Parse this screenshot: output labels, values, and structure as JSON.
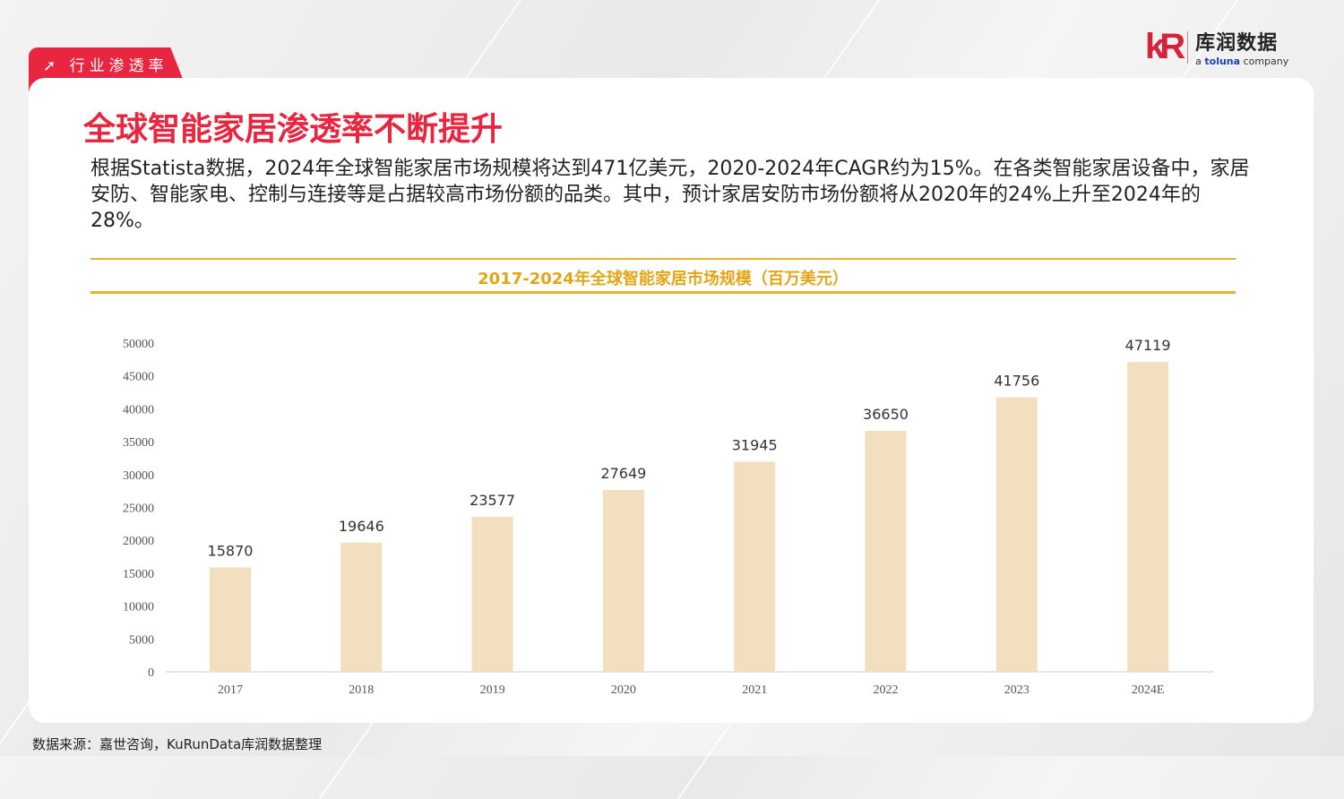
{
  "section_tab": "行业渗透率",
  "logo": {
    "cn": "库润数据",
    "en_prefix": "a ",
    "en_brand": "toluna",
    "en_suffix": " company"
  },
  "title": "全球智能家居渗透率不断提升",
  "description": "根据Statista数据，2024年全球智能家居市场规模将达到471亿美元，2020-2024年CAGR约为15%。在各类智能家居设备中，家居安防、智能家电、控制与连接等是占据较高市场份额的品类。其中，预计家居安防市场份额将从2020年的24%上升至2024年的28%。",
  "source": "数据来源：嘉世咨询，KuRunData库润数据整理",
  "colors": {
    "accent": "#e8263f",
    "chart_title": "#e3a516",
    "bar": "#f2dfc0"
  },
  "chart_data": {
    "type": "bar",
    "title": "2017-2024年全球智能家居市场规模（百万美元）",
    "categories": [
      "2017",
      "2018",
      "2019",
      "2020",
      "2021",
      "2022",
      "2023",
      "2024E"
    ],
    "values": [
      15870,
      19646,
      23577,
      27649,
      31945,
      36650,
      41756,
      47119
    ],
    "yticks": [
      "0",
      "5000",
      "10000",
      "15000",
      "20000",
      "25000",
      "30000",
      "35000",
      "40000",
      "45000",
      "50000"
    ],
    "ylim": [
      0,
      50000
    ],
    "grid": false
  }
}
